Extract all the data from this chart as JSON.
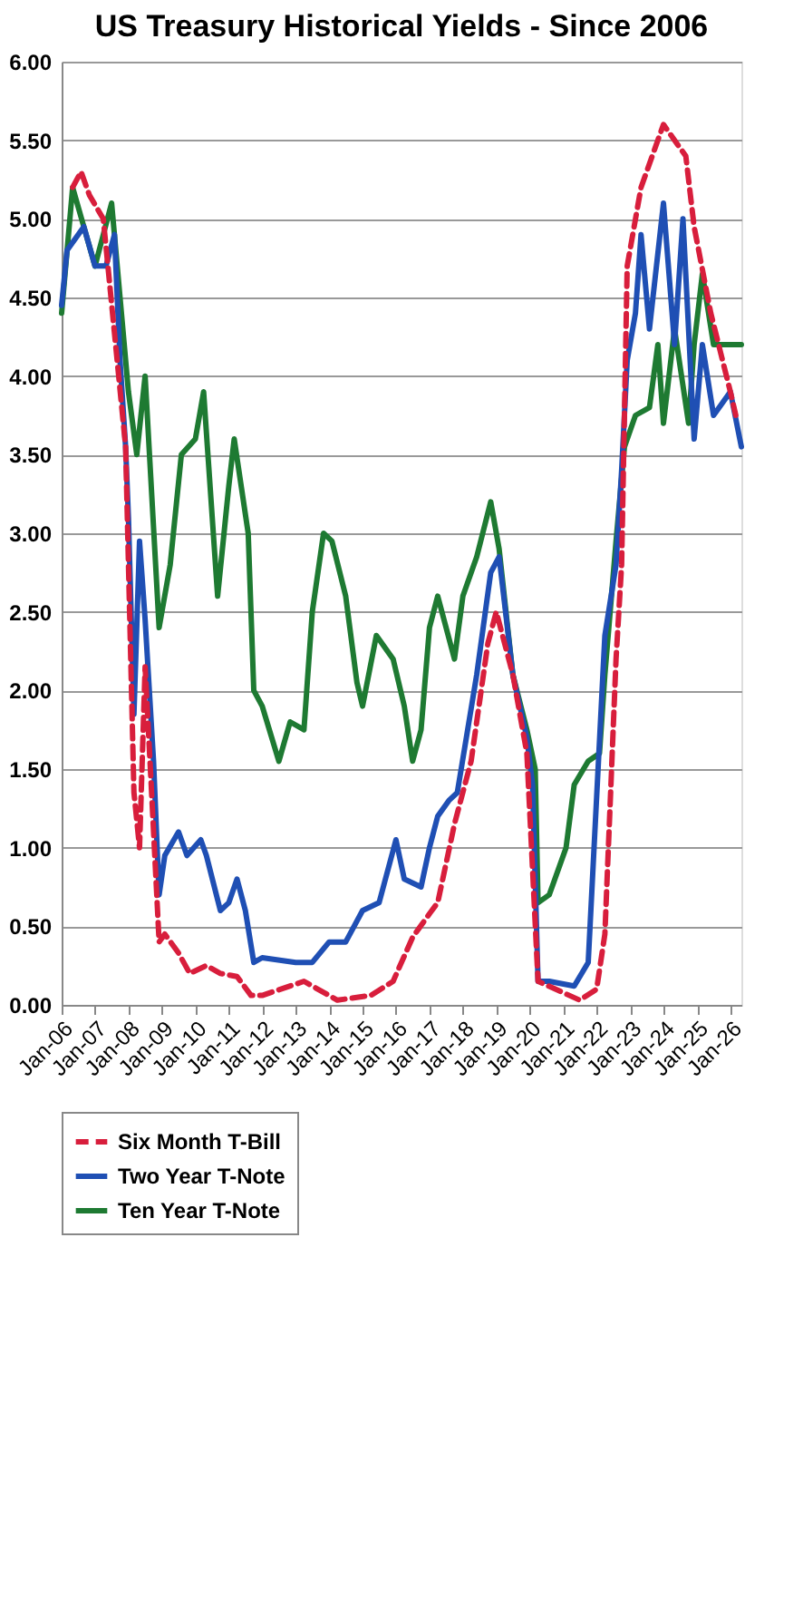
{
  "chart_data": {
    "type": "line",
    "title": "US Treasury Historical Yields - Since 2006",
    "xlim": [
      "2006-01",
      "2026-05"
    ],
    "xticks": [
      {
        "value": "2006-01",
        "label": "Jan-06"
      },
      {
        "value": "2007-01",
        "label": "Jan-07"
      },
      {
        "value": "2008-01",
        "label": "Jan-08"
      },
      {
        "value": "2009-01",
        "label": "Jan-09"
      },
      {
        "value": "2010-01",
        "label": "Jan-10"
      },
      {
        "value": "2011-01",
        "label": "Jan-11"
      },
      {
        "value": "2012-01",
        "label": "Jan-12"
      },
      {
        "value": "2013-01",
        "label": "Jan-13"
      },
      {
        "value": "2014-01",
        "label": "Jan-14"
      },
      {
        "value": "2015-01",
        "label": "Jan-15"
      },
      {
        "value": "2016-01",
        "label": "Jan-16"
      },
      {
        "value": "2017-01",
        "label": "Jan-17"
      },
      {
        "value": "2018-01",
        "label": "Jan-18"
      },
      {
        "value": "2019-01",
        "label": "Jan-19"
      },
      {
        "value": "2020-01",
        "label": "Jan-20"
      },
      {
        "value": "2021-01",
        "label": "Jan-21"
      },
      {
        "value": "2022-01",
        "label": "Jan-22"
      },
      {
        "value": "2023-01",
        "label": "Jan-23"
      },
      {
        "value": "2024-01",
        "label": "Jan-24"
      },
      {
        "value": "2025-01",
        "label": "Jan-25"
      },
      {
        "value": "2026-01",
        "label": "Jan-26"
      }
    ],
    "ylim": [
      0,
      6
    ],
    "yticks": [
      {
        "value": 0,
        "label": "0.00"
      },
      {
        "value": 0.5,
        "label": "0.50"
      },
      {
        "value": 1,
        "label": "1.00"
      },
      {
        "value": 1.5,
        "label": "1.50"
      },
      {
        "value": 2,
        "label": "2.00"
      },
      {
        "value": 2.5,
        "label": "2.50"
      },
      {
        "value": 3,
        "label": "3.00"
      },
      {
        "value": 3.5,
        "label": "3.50"
      },
      {
        "value": 4,
        "label": "4.00"
      },
      {
        "value": 4.5,
        "label": "4.50"
      },
      {
        "value": 5,
        "label": "5.00"
      },
      {
        "value": 5.5,
        "label": "5.50"
      },
      {
        "value": 6,
        "label": "6.00"
      }
    ],
    "grid": "y",
    "legend": "bottom",
    "series": [
      {
        "name": "Six Month T-Bill",
        "color": "#d81e3c",
        "line_style": "dashed",
        "x": [
          "2006-05",
          "2006-08",
          "2006-11",
          "2007-04",
          "2007-12",
          "2008-03",
          "2008-05",
          "2008-07",
          "2008-09",
          "2008-12",
          "2009-02",
          "2009-07",
          "2009-11",
          "2010-05",
          "2010-10",
          "2011-04",
          "2011-09",
          "2012-01",
          "2013-04",
          "2014-04",
          "2015-04",
          "2015-12",
          "2016-07",
          "2017-01",
          "2017-04",
          "2017-10",
          "2018-04",
          "2018-10",
          "2019-01",
          "2019-07",
          "2019-12",
          "2020-04",
          "2021-07",
          "2022-01",
          "2022-04",
          "2022-08",
          "2022-10",
          "2022-12",
          "2023-05",
          "2024-01",
          "2024-07",
          "2024-09",
          "2024-12",
          "2025-06",
          "2026-01",
          "2026-03"
        ],
        "values": [
          5.2,
          5.3,
          5.15,
          5.0,
          3.55,
          1.35,
          1.0,
          2.15,
          1.45,
          0.4,
          0.45,
          0.33,
          0.2,
          0.25,
          0.2,
          0.18,
          0.06,
          0.06,
          0.15,
          0.03,
          0.06,
          0.15,
          0.43,
          0.58,
          0.65,
          1.15,
          1.55,
          2.3,
          2.5,
          2.1,
          1.6,
          0.15,
          0.03,
          0.1,
          0.45,
          2.2,
          2.8,
          4.7,
          5.2,
          5.6,
          5.45,
          5.4,
          4.95,
          4.4,
          3.9,
          3.75
        ]
      },
      {
        "name": "Two Year T-Note",
        "color": "#1f4fb4",
        "line_style": "solid",
        "x": [
          "2006-01",
          "2006-03",
          "2006-09",
          "2007-01",
          "2007-05",
          "2007-08",
          "2007-10",
          "2007-12",
          "2008-01",
          "2008-03",
          "2008-05",
          "2008-07",
          "2008-10",
          "2008-12",
          "2009-02",
          "2009-07",
          "2009-10",
          "2010-03",
          "2010-05",
          "2010-10",
          "2011-01",
          "2011-04",
          "2011-07",
          "2011-10",
          "2012-01",
          "2013-01",
          "2013-07",
          "2014-01",
          "2014-07",
          "2015-01",
          "2015-07",
          "2016-01",
          "2016-04",
          "2016-10",
          "2017-01",
          "2017-04",
          "2017-08",
          "2017-11",
          "2018-06",
          "2018-11",
          "2019-02",
          "2019-07",
          "2019-12",
          "2020-02",
          "2020-04",
          "2020-08",
          "2021-05",
          "2021-10",
          "2022-04",
          "2022-08",
          "2022-10",
          "2022-12",
          "2023-03",
          "2023-05",
          "2023-08",
          "2024-01",
          "2024-05",
          "2024-08",
          "2024-12",
          "2025-03",
          "2025-07",
          "2026-01",
          "2026-05"
        ],
        "values": [
          4.45,
          4.8,
          4.95,
          4.7,
          4.7,
          4.9,
          4.1,
          3.55,
          3.1,
          1.85,
          2.95,
          2.45,
          1.55,
          0.7,
          0.95,
          1.1,
          0.95,
          1.05,
          0.95,
          0.6,
          0.65,
          0.8,
          0.6,
          0.27,
          0.3,
          0.27,
          0.27,
          0.4,
          0.4,
          0.6,
          0.65,
          1.05,
          0.8,
          0.75,
          1.0,
          1.2,
          1.3,
          1.35,
          2.1,
          2.75,
          2.85,
          2.1,
          1.7,
          1.4,
          0.15,
          0.15,
          0.12,
          0.27,
          2.35,
          2.8,
          3.4,
          4.1,
          4.4,
          4.9,
          4.3,
          5.1,
          4.2,
          5.0,
          3.6,
          4.2,
          3.75,
          3.9,
          3.55
        ]
      },
      {
        "name": "Ten Year T-Note",
        "color": "#1e7a32",
        "line_style": "solid",
        "x": [
          "2006-01",
          "2006-05",
          "2007-01",
          "2007-07",
          "2007-10",
          "2008-01",
          "2008-04",
          "2008-07",
          "2008-12",
          "2009-04",
          "2009-08",
          "2010-01",
          "2010-04",
          "2010-09",
          "2011-01",
          "2011-03",
          "2011-08",
          "2011-10",
          "2012-01",
          "2012-07",
          "2012-11",
          "2013-04",
          "2013-07",
          "2013-11",
          "2014-02",
          "2014-07",
          "2014-11",
          "2015-01",
          "2015-06",
          "2015-12",
          "2016-04",
          "2016-07",
          "2016-10",
          "2017-01",
          "2017-04",
          "2017-10",
          "2018-01",
          "2018-06",
          "2018-11",
          "2019-02",
          "2019-07",
          "2019-12",
          "2020-03",
          "2020-04",
          "2020-08",
          "2021-02",
          "2021-05",
          "2021-10",
          "2022-02",
          "2022-04",
          "2022-08",
          "2022-11",
          "2023-03",
          "2023-08",
          "2023-11",
          "2024-01",
          "2024-05",
          "2024-10",
          "2024-12",
          "2025-03",
          "2025-07",
          "2026-01",
          "2026-05"
        ],
        "values": [
          4.4,
          5.2,
          4.7,
          5.1,
          4.5,
          3.9,
          3.5,
          4.0,
          2.4,
          2.8,
          3.5,
          3.6,
          3.9,
          2.6,
          3.3,
          3.6,
          3.0,
          2.0,
          1.9,
          1.55,
          1.8,
          1.75,
          2.5,
          3.0,
          2.95,
          2.6,
          2.05,
          1.9,
          2.35,
          2.2,
          1.9,
          1.55,
          1.75,
          2.4,
          2.6,
          2.2,
          2.6,
          2.85,
          3.2,
          2.9,
          2.1,
          1.75,
          1.5,
          0.65,
          0.7,
          1.0,
          1.4,
          1.55,
          1.6,
          2.1,
          2.95,
          3.55,
          3.75,
          3.8,
          4.2,
          3.7,
          4.3,
          3.7,
          4.2,
          4.65,
          4.2,
          4.2,
          4.2
        ]
      }
    ]
  }
}
